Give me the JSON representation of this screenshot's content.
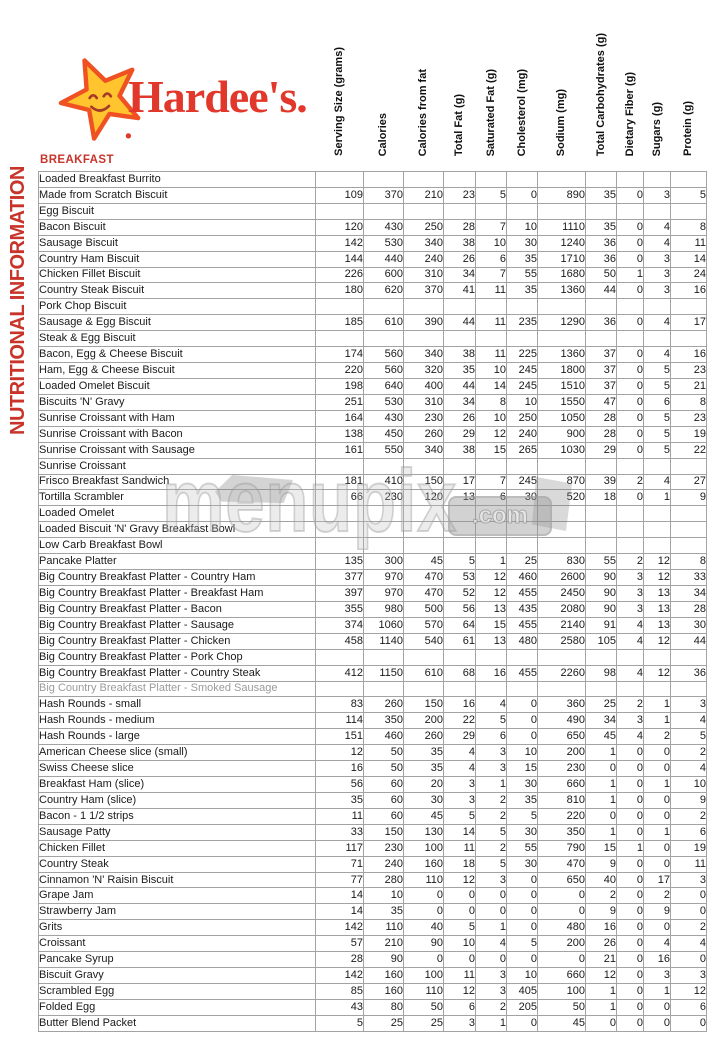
{
  "brand": {
    "name": "Hardee's.",
    "star_icon": "smiling-star",
    "colors": {
      "logo_red": "#e2382c",
      "star_yellow": "#ffc42e",
      "star_outline": "#ef5123",
      "accent_red": "#c8342a",
      "grid_gray": "#a3a3a3",
      "muted_gray": "#9b9b9b"
    }
  },
  "sidebar_label": "NUTRITIONAL INFORMATION",
  "section_title": "BREAKFAST",
  "watermark": {
    "text": "menupix",
    "suffix": ".com"
  },
  "table": {
    "columns": [
      "Serving Size (grams)",
      "Calories",
      "Calories from fat",
      "Total Fat (g)",
      "Saturated Fat (g)",
      "Cholesterol (mg)",
      "Sodium (mg)",
      "Total Carbohydrates (g)",
      "Dietary Fiber (g)",
      "Sugars (g)",
      "Protein (g)"
    ],
    "rows": [
      {
        "name": "Loaded Breakfast Burrito",
        "values": [
          "",
          "",
          "",
          "",
          "",
          "",
          "",
          "",
          "",
          "",
          ""
        ]
      },
      {
        "name": "Made from Scratch Biscuit",
        "values": [
          109,
          370,
          210,
          23,
          5,
          0,
          890,
          35,
          0,
          3,
          5
        ]
      },
      {
        "name": "Egg Biscuit",
        "values": [
          "",
          "",
          "",
          "",
          "",
          "",
          "",
          "",
          "",
          "",
          ""
        ]
      },
      {
        "name": "Bacon Biscuit",
        "values": [
          120,
          430,
          250,
          28,
          7,
          10,
          1110,
          35,
          0,
          4,
          8
        ]
      },
      {
        "name": "Sausage Biscuit",
        "values": [
          142,
          530,
          340,
          38,
          10,
          30,
          1240,
          36,
          0,
          4,
          11
        ]
      },
      {
        "name": "Country Ham Biscuit",
        "values": [
          144,
          440,
          240,
          26,
          6,
          35,
          1710,
          36,
          0,
          3,
          14
        ]
      },
      {
        "name": "Chicken Fillet Biscuit",
        "values": [
          226,
          600,
          310,
          34,
          7,
          55,
          1680,
          50,
          1,
          3,
          24
        ]
      },
      {
        "name": "Country Steak Biscuit",
        "values": [
          180,
          620,
          370,
          41,
          11,
          35,
          1360,
          44,
          0,
          3,
          16
        ]
      },
      {
        "name": "Pork Chop Biscuit",
        "values": [
          "",
          "",
          "",
          "",
          "",
          "",
          "",
          "",
          "",
          "",
          ""
        ]
      },
      {
        "name": "Sausage & Egg Biscuit",
        "values": [
          185,
          610,
          390,
          44,
          11,
          235,
          1290,
          36,
          0,
          4,
          17
        ]
      },
      {
        "name": "Steak & Egg Biscuit",
        "values": [
          "",
          "",
          "",
          "",
          "",
          "",
          "",
          "",
          "",
          "",
          ""
        ]
      },
      {
        "name": "Bacon, Egg & Cheese Biscuit",
        "values": [
          174,
          560,
          340,
          38,
          11,
          225,
          1360,
          37,
          0,
          4,
          16
        ]
      },
      {
        "name": "Ham, Egg & Cheese Biscuit",
        "values": [
          220,
          560,
          320,
          35,
          10,
          245,
          1800,
          37,
          0,
          5,
          23
        ]
      },
      {
        "name": "Loaded Omelet Biscuit",
        "values": [
          198,
          640,
          400,
          44,
          14,
          245,
          1510,
          37,
          0,
          5,
          21
        ]
      },
      {
        "name": "Biscuits 'N' Gravy",
        "values": [
          251,
          530,
          310,
          34,
          8,
          10,
          1550,
          47,
          0,
          6,
          8
        ]
      },
      {
        "name": "Sunrise Croissant with Ham",
        "values": [
          164,
          430,
          230,
          26,
          10,
          250,
          1050,
          28,
          0,
          5,
          23
        ]
      },
      {
        "name": "Sunrise Croissant with Bacon",
        "values": [
          138,
          450,
          260,
          29,
          12,
          240,
          900,
          28,
          0,
          5,
          19
        ]
      },
      {
        "name": "Sunrise Croissant with Sausage",
        "values": [
          161,
          550,
          340,
          38,
          15,
          265,
          1030,
          29,
          0,
          5,
          22
        ]
      },
      {
        "name": "Sunrise Croissant",
        "values": [
          "",
          "",
          "",
          "",
          "",
          "",
          "",
          "",
          "",
          "",
          ""
        ]
      },
      {
        "name": "Frisco Breakfast Sandwich",
        "values": [
          181,
          410,
          150,
          17,
          7,
          245,
          870,
          39,
          2,
          4,
          27
        ]
      },
      {
        "name": "Tortilla Scrambler",
        "values": [
          66,
          230,
          120,
          13,
          6,
          30,
          520,
          18,
          0,
          1,
          9
        ]
      },
      {
        "name": "Loaded Omelet",
        "values": [
          "",
          "",
          "",
          "",
          "",
          "",
          "",
          "",
          "",
          "",
          ""
        ]
      },
      {
        "name": "Loaded Biscuit 'N' Gravy Breakfast Bowl",
        "values": [
          "",
          "",
          "",
          "",
          "",
          "",
          "",
          "",
          "",
          "",
          ""
        ]
      },
      {
        "name": "Low Carb Breakfast Bowl",
        "values": [
          "",
          "",
          "",
          "",
          "",
          "",
          "",
          "",
          "",
          "",
          ""
        ]
      },
      {
        "name": "Pancake Platter",
        "values": [
          135,
          300,
          45,
          5,
          1,
          25,
          830,
          55,
          2,
          12,
          8
        ]
      },
      {
        "name": "Big Country Breakfast Platter - Country Ham",
        "values": [
          377,
          970,
          470,
          53,
          12,
          460,
          2600,
          90,
          3,
          12,
          33
        ]
      },
      {
        "name": "Big Country Breakfast Platter - Breakfast Ham",
        "values": [
          397,
          970,
          470,
          52,
          12,
          455,
          2450,
          90,
          3,
          13,
          34
        ]
      },
      {
        "name": "Big Country Breakfast Platter - Bacon",
        "values": [
          355,
          980,
          500,
          56,
          13,
          435,
          2080,
          90,
          3,
          13,
          28
        ]
      },
      {
        "name": "Big Country Breakfast Platter - Sausage",
        "values": [
          374,
          1060,
          570,
          64,
          15,
          455,
          2140,
          91,
          4,
          13,
          30
        ]
      },
      {
        "name": "Big Country Breakfast Platter - Chicken",
        "values": [
          458,
          1140,
          540,
          61,
          13,
          480,
          2580,
          105,
          4,
          12,
          44
        ]
      },
      {
        "name": "Big Country Breakfast Platter - Pork Chop",
        "values": [
          "",
          "",
          "",
          "",
          "",
          "",
          "",
          "",
          "",
          "",
          ""
        ]
      },
      {
        "name": "Big Country Breakfast Platter - Country Steak",
        "values": [
          412,
          1150,
          610,
          68,
          16,
          455,
          2260,
          98,
          4,
          12,
          36
        ]
      },
      {
        "name": "Big Country Breakfast Platter - Smoked Sausage",
        "values": [
          "",
          "",
          "",
          "",
          "",
          "",
          "",
          "",
          "",
          "",
          ""
        ],
        "muted": true
      },
      {
        "name": "Hash Rounds - small",
        "values": [
          83,
          260,
          150,
          16,
          4,
          0,
          360,
          25,
          2,
          1,
          3
        ]
      },
      {
        "name": "Hash Rounds - medium",
        "values": [
          114,
          350,
          200,
          22,
          5,
          0,
          490,
          34,
          3,
          1,
          4
        ]
      },
      {
        "name": "Hash Rounds - large",
        "values": [
          151,
          460,
          260,
          29,
          6,
          0,
          650,
          45,
          4,
          2,
          5
        ]
      },
      {
        "name": "American Cheese slice (small)",
        "values": [
          12,
          50,
          35,
          4,
          3,
          10,
          200,
          1,
          0,
          0,
          2
        ]
      },
      {
        "name": "Swiss Cheese slice",
        "values": [
          16,
          50,
          35,
          4,
          3,
          15,
          230,
          0,
          0,
          0,
          4
        ]
      },
      {
        "name": "Breakfast Ham (slice)",
        "values": [
          56,
          60,
          20,
          3,
          1,
          30,
          660,
          1,
          0,
          1,
          10
        ]
      },
      {
        "name": "Country Ham (slice)",
        "values": [
          35,
          60,
          30,
          3,
          2,
          35,
          810,
          1,
          0,
          0,
          9
        ]
      },
      {
        "name": "Bacon - 1 1/2 strips",
        "values": [
          11,
          60,
          45,
          5,
          2,
          5,
          220,
          0,
          0,
          0,
          2
        ]
      },
      {
        "name": "Sausage Patty",
        "values": [
          33,
          150,
          130,
          14,
          5,
          30,
          350,
          1,
          0,
          1,
          6
        ]
      },
      {
        "name": "Chicken Fillet",
        "values": [
          117,
          230,
          100,
          11,
          2,
          55,
          790,
          15,
          1,
          0,
          19
        ]
      },
      {
        "name": "Country Steak",
        "values": [
          71,
          240,
          160,
          18,
          5,
          30,
          470,
          9,
          0,
          0,
          11
        ]
      },
      {
        "name": "Cinnamon 'N' Raisin Biscuit",
        "values": [
          77,
          280,
          110,
          12,
          3,
          0,
          650,
          40,
          0,
          17,
          3
        ]
      },
      {
        "name": "Grape Jam",
        "values": [
          14,
          10,
          0,
          0,
          0,
          0,
          0,
          2,
          0,
          2,
          0
        ]
      },
      {
        "name": "Strawberry Jam",
        "values": [
          14,
          35,
          0,
          0,
          0,
          0,
          0,
          9,
          0,
          9,
          0
        ]
      },
      {
        "name": "Grits",
        "values": [
          142,
          110,
          40,
          5,
          1,
          0,
          480,
          16,
          0,
          0,
          2
        ]
      },
      {
        "name": "Croissant",
        "values": [
          57,
          210,
          90,
          10,
          4,
          5,
          200,
          26,
          0,
          4,
          4
        ]
      },
      {
        "name": "Pancake Syrup",
        "values": [
          28,
          90,
          0,
          0,
          0,
          0,
          0,
          21,
          0,
          16,
          0
        ]
      },
      {
        "name": "Biscuit Gravy",
        "values": [
          142,
          160,
          100,
          11,
          3,
          10,
          660,
          12,
          0,
          3,
          3
        ]
      },
      {
        "name": "Scrambled Egg",
        "values": [
          85,
          160,
          110,
          12,
          3,
          405,
          100,
          1,
          0,
          1,
          12
        ]
      },
      {
        "name": "Folded Egg",
        "values": [
          43,
          80,
          50,
          6,
          2,
          205,
          50,
          1,
          0,
          0,
          6
        ]
      },
      {
        "name": "Butter Blend Packet",
        "values": [
          5,
          25,
          25,
          3,
          1,
          0,
          45,
          0,
          0,
          0,
          0
        ]
      }
    ]
  }
}
